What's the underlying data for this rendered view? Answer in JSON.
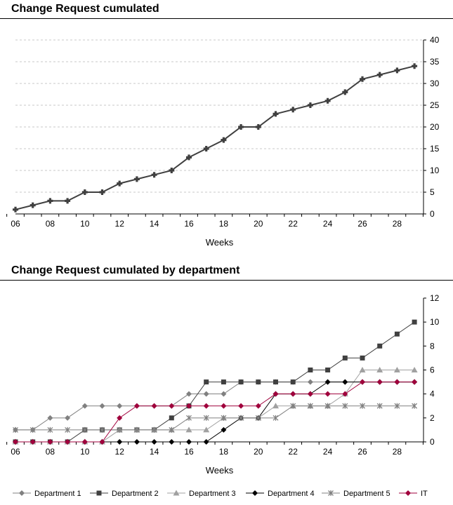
{
  "chart_data": [
    {
      "type": "line",
      "title": "Change Request cumulated",
      "xlabel": "Weeks",
      "ylabel": "",
      "x": [
        6,
        7,
        8,
        9,
        10,
        11,
        12,
        13,
        14,
        15,
        16,
        17,
        18,
        19,
        20,
        21,
        22,
        23,
        24,
        25,
        26,
        27,
        28,
        29
      ],
      "xticks": [
        "06",
        "08",
        "10",
        "12",
        "14",
        "16",
        "18",
        "20",
        "22",
        "24",
        "26",
        "28"
      ],
      "ylim": [
        0,
        40
      ],
      "yticks": [
        0,
        5,
        10,
        15,
        20,
        25,
        30,
        35,
        40
      ],
      "grid": true,
      "series": [
        {
          "values": [
            1,
            2,
            3,
            3,
            5,
            5,
            7,
            8,
            9,
            10,
            13,
            15,
            17,
            20,
            20,
            23,
            24,
            25,
            26,
            28,
            31,
            32,
            33,
            34
          ],
          "color": "#404040"
        }
      ]
    },
    {
      "type": "line",
      "title": "Change Request cumulated by department",
      "xlabel": "Weeks",
      "ylabel": "",
      "x": [
        6,
        7,
        8,
        9,
        10,
        11,
        12,
        13,
        14,
        15,
        16,
        17,
        18,
        19,
        20,
        21,
        22,
        23,
        24,
        25,
        26,
        27,
        28,
        29
      ],
      "xticks": [
        "06",
        "08",
        "10",
        "12",
        "14",
        "16",
        "18",
        "20",
        "22",
        "24",
        "26",
        "28"
      ],
      "ylim": [
        0,
        12
      ],
      "yticks": [
        0,
        2,
        4,
        6,
        8,
        10,
        12
      ],
      "grid": false,
      "legend": "bottom",
      "series": [
        {
          "name": "Department 1",
          "marker": "diamond",
          "color": "#808080",
          "values": [
            1,
            1,
            2,
            2,
            3,
            3,
            3,
            3,
            3,
            3,
            4,
            4,
            4,
            5,
            5,
            5,
            5,
            5,
            5,
            5,
            5,
            5,
            5,
            5
          ]
        },
        {
          "name": "Department 2",
          "marker": "square",
          "color": "#404040",
          "values": [
            0,
            0,
            0,
            0,
            1,
            1,
            1,
            1,
            1,
            2,
            3,
            5,
            5,
            5,
            5,
            5,
            5,
            6,
            6,
            7,
            7,
            8,
            9,
            10
          ]
        },
        {
          "name": "Department 3",
          "marker": "triangle",
          "color": "#a0a0a0",
          "values": [
            0,
            0,
            0,
            0,
            0,
            0,
            1,
            1,
            1,
            1,
            1,
            1,
            2,
            2,
            2,
            3,
            3,
            3,
            3,
            4,
            6,
            6,
            6,
            6
          ]
        },
        {
          "name": "Department 4",
          "marker": "diamond",
          "color": "#000000",
          "values": [
            0,
            0,
            0,
            0,
            0,
            0,
            0,
            0,
            0,
            0,
            0,
            0,
            1,
            2,
            2,
            4,
            4,
            4,
            5,
            5,
            5,
            5,
            5,
            5
          ]
        },
        {
          "name": "Department 5",
          "marker": "star",
          "color": "#808080",
          "values": [
            1,
            1,
            1,
            1,
            1,
            1,
            1,
            1,
            1,
            1,
            2,
            2,
            2,
            2,
            2,
            2,
            3,
            3,
            3,
            3,
            3,
            3,
            3,
            3
          ]
        },
        {
          "name": "IT",
          "marker": "diamond",
          "color": "#a0003c",
          "values": [
            0,
            0,
            0,
            0,
            0,
            0,
            2,
            3,
            3,
            3,
            3,
            3,
            3,
            3,
            3,
            4,
            4,
            4,
            4,
            4,
            5,
            5,
            5,
            5
          ]
        }
      ]
    }
  ]
}
